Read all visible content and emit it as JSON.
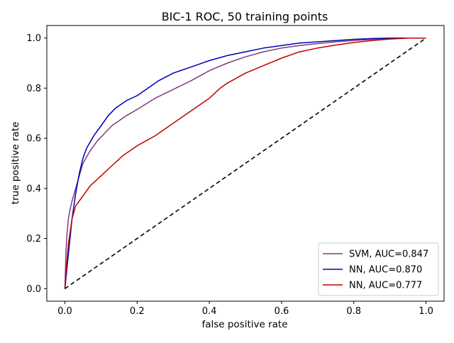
{
  "chart_data": {
    "type": "line",
    "title": "BIC-1 ROC, 50 training points",
    "xlabel": "false positive rate",
    "ylabel": "true positive rate",
    "xlim": [
      -0.05,
      1.05
    ],
    "ylim": [
      -0.05,
      1.05
    ],
    "xticks": [
      0.0,
      0.2,
      0.4,
      0.6,
      0.8,
      1.0
    ],
    "yticks": [
      0.0,
      0.2,
      0.4,
      0.6,
      0.8,
      1.0
    ],
    "xtick_labels": [
      "0.0",
      "0.2",
      "0.4",
      "0.6",
      "0.8",
      "1.0"
    ],
    "ytick_labels": [
      "0.0",
      "0.2",
      "0.4",
      "0.6",
      "0.8",
      "1.0"
    ],
    "grid": false,
    "legend_position": "lower-right",
    "series": [
      {
        "name": "SVM, AUC=0.847",
        "color": "#7d3c7d",
        "x": [
          0,
          0.003,
          0.006,
          0.01,
          0.015,
          0.02,
          0.03,
          0.04,
          0.05,
          0.07,
          0.09,
          0.11,
          0.13,
          0.15,
          0.17,
          0.2,
          0.25,
          0.3,
          0.35,
          0.4,
          0.45,
          0.5,
          0.55,
          0.6,
          0.65,
          0.7,
          0.75,
          0.8,
          0.85,
          0.9,
          0.95,
          1.0
        ],
        "y": [
          0,
          0.15,
          0.22,
          0.28,
          0.32,
          0.35,
          0.4,
          0.45,
          0.5,
          0.55,
          0.59,
          0.62,
          0.65,
          0.67,
          0.69,
          0.715,
          0.76,
          0.795,
          0.83,
          0.87,
          0.9,
          0.925,
          0.945,
          0.96,
          0.97,
          0.978,
          0.985,
          0.99,
          0.995,
          0.998,
          1.0,
          1.0
        ]
      },
      {
        "name": "NN, AUC=0.870",
        "color": "#0000b4",
        "x": [
          0,
          0.005,
          0.01,
          0.02,
          0.03,
          0.04,
          0.05,
          0.06,
          0.08,
          0.1,
          0.12,
          0.14,
          0.17,
          0.2,
          0.23,
          0.26,
          0.3,
          0.35,
          0.4,
          0.45,
          0.5,
          0.55,
          0.6,
          0.65,
          0.7,
          0.75,
          0.8,
          0.85,
          0.9,
          0.95,
          1.0
        ],
        "y": [
          0,
          0.07,
          0.14,
          0.28,
          0.38,
          0.46,
          0.52,
          0.56,
          0.61,
          0.65,
          0.69,
          0.72,
          0.75,
          0.77,
          0.8,
          0.83,
          0.86,
          0.885,
          0.91,
          0.93,
          0.945,
          0.96,
          0.97,
          0.98,
          0.985,
          0.99,
          0.995,
          0.998,
          1.0,
          1.0,
          1.0
        ]
      },
      {
        "name": "NN, AUC=0.777",
        "color": "#c00000",
        "x": [
          0,
          0.005,
          0.01,
          0.02,
          0.03,
          0.05,
          0.07,
          0.1,
          0.13,
          0.16,
          0.2,
          0.25,
          0.3,
          0.35,
          0.4,
          0.43,
          0.45,
          0.5,
          0.55,
          0.6,
          0.65,
          0.7,
          0.75,
          0.8,
          0.85,
          0.9,
          0.95,
          1.0
        ],
        "y": [
          0,
          0.1,
          0.18,
          0.28,
          0.33,
          0.37,
          0.41,
          0.45,
          0.49,
          0.53,
          0.57,
          0.61,
          0.66,
          0.71,
          0.76,
          0.8,
          0.82,
          0.86,
          0.89,
          0.92,
          0.945,
          0.96,
          0.972,
          0.982,
          0.99,
          0.996,
          1.0,
          1.0
        ]
      },
      {
        "color": "#000000",
        "dash": true,
        "x": [
          0,
          1
        ],
        "y": [
          0,
          1
        ]
      }
    ]
  }
}
